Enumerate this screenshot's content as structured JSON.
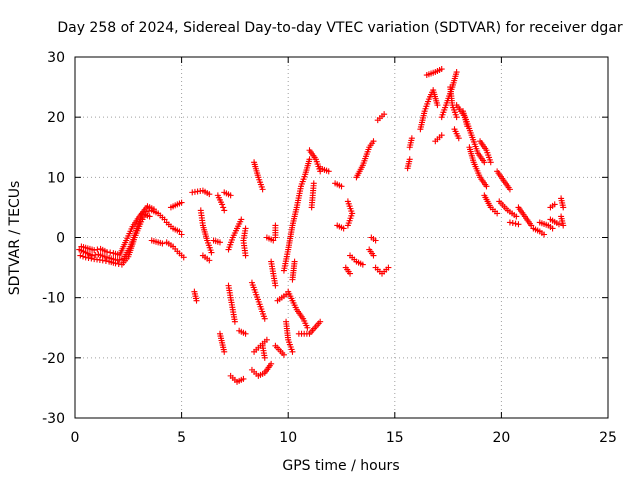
{
  "chart_data": {
    "type": "scatter",
    "title": "Day 258 of 2024, Sidereal Day-to-day VTEC variation (SDTVAR) for receiver dgar",
    "xlabel": "GPS time / hours",
    "ylabel": "SDTVAR / TECUs",
    "xlim": [
      0,
      25
    ],
    "ylim": [
      -30,
      30
    ],
    "xticks": [
      0,
      5,
      10,
      15,
      20,
      25
    ],
    "yticks": [
      -30,
      -20,
      -10,
      0,
      10,
      20,
      30
    ],
    "xtick_labels": [
      "0",
      "5",
      "10",
      "15",
      "20",
      "25"
    ],
    "ytick_labels": [
      "-30",
      "-20",
      "-10",
      "0",
      "10",
      "20",
      "30"
    ],
    "grid": true,
    "marker": "plus",
    "color": "#ff0000",
    "segments": [
      [
        [
          0.2,
          -2
        ],
        [
          0.5,
          -2.5
        ],
        [
          0.8,
          -3
        ],
        [
          1.1,
          -2.8
        ],
        [
          1.4,
          -3.2
        ],
        [
          1.7,
          -3.5
        ],
        [
          2.0,
          -3.8
        ],
        [
          2.3,
          -3.5
        ],
        [
          2.6,
          -1.5
        ],
        [
          2.9,
          1.5
        ],
        [
          3.2,
          4.2
        ],
        [
          3.6,
          4.5
        ],
        [
          3.9,
          4.0
        ],
        [
          4.2,
          3.0
        ]
      ],
      [
        [
          0.3,
          -1.5
        ],
        [
          0.6,
          -1.8
        ],
        [
          0.9,
          -2.1
        ],
        [
          1.2,
          -1.9
        ],
        [
          1.5,
          -2.4
        ],
        [
          1.8,
          -2.6
        ],
        [
          2.1,
          -2.9
        ],
        [
          2.4,
          -0.5
        ],
        [
          2.7,
          1.8
        ],
        [
          3.0,
          3.4
        ],
        [
          3.4,
          5.2
        ],
        [
          3.7,
          4.7
        ]
      ],
      [
        [
          0.25,
          -3.0
        ],
        [
          0.5,
          -3.3
        ],
        [
          0.9,
          -3.6
        ],
        [
          1.3,
          -3.8
        ],
        [
          1.6,
          -4.0
        ],
        [
          1.9,
          -4.3
        ],
        [
          2.2,
          -4.5
        ],
        [
          2.5,
          -3.2
        ],
        [
          2.8,
          0.0
        ],
        [
          3.1,
          2.6
        ],
        [
          3.3,
          3.8
        ],
        [
          3.5,
          3.5
        ]
      ],
      [
        [
          4.3,
          2.5
        ],
        [
          4.6,
          1.5
        ],
        [
          4.9,
          1.0
        ],
        [
          5.0,
          0.5
        ]
      ],
      [
        [
          4.5,
          5
        ],
        [
          4.8,
          5.5
        ],
        [
          5.0,
          5.8
        ]
      ],
      [
        [
          3.6,
          -0.5
        ],
        [
          3.9,
          -0.8
        ],
        [
          4.1,
          -1.0
        ]
      ],
      [
        [
          4.3,
          -0.8
        ],
        [
          4.6,
          -1.5
        ],
        [
          4.8,
          -2.3
        ],
        [
          5.1,
          -3.3
        ]
      ],
      [
        [
          5.5,
          7.5
        ],
        [
          6.0,
          7.8
        ],
        [
          6.3,
          7.2
        ]
      ],
      [
        [
          5.9,
          4.5
        ],
        [
          6.0,
          2.0
        ],
        [
          6.2,
          -0.5
        ],
        [
          6.4,
          -2.5
        ]
      ],
      [
        [
          5.6,
          -9
        ],
        [
          5.7,
          -10.5
        ]
      ],
      [
        [
          6.0,
          -3
        ],
        [
          6.3,
          -3.8
        ]
      ],
      [
        [
          6.5,
          -0.5
        ],
        [
          6.8,
          -0.8
        ]
      ],
      [
        [
          6.7,
          7
        ],
        [
          6.9,
          5.5
        ],
        [
          7.0,
          4.5
        ]
      ],
      [
        [
          7.0,
          7.5
        ],
        [
          7.3,
          7.0
        ]
      ],
      [
        [
          6.8,
          -16
        ],
        [
          6.9,
          -17.5
        ],
        [
          7.0,
          -19
        ]
      ],
      [
        [
          7.2,
          -2
        ],
        [
          7.4,
          0
        ],
        [
          7.6,
          1.5
        ],
        [
          7.8,
          3
        ]
      ],
      [
        [
          7.2,
          -8
        ],
        [
          7.3,
          -10
        ],
        [
          7.4,
          -12
        ],
        [
          7.5,
          -14
        ]
      ],
      [
        [
          7.3,
          -23
        ],
        [
          7.6,
          -24
        ],
        [
          7.9,
          -23.5
        ]
      ],
      [
        [
          7.7,
          -15.5
        ],
        [
          8.0,
          -16
        ]
      ],
      [
        [
          8.0,
          -3
        ],
        [
          7.9,
          -0.5
        ],
        [
          8.0,
          1.5
        ]
      ],
      [
        [
          8.3,
          -22
        ],
        [
          8.6,
          -23
        ],
        [
          8.9,
          -22.5
        ],
        [
          9.2,
          -21
        ]
      ],
      [
        [
          8.4,
          -19
        ],
        [
          8.7,
          -18
        ],
        [
          9.0,
          -17
        ]
      ],
      [
        [
          8.3,
          -7.5
        ],
        [
          8.5,
          -9.5
        ],
        [
          8.7,
          -11.5
        ],
        [
          8.9,
          -13.5
        ]
      ],
      [
        [
          8.4,
          12.5
        ],
        [
          8.6,
          10
        ],
        [
          8.8,
          8
        ]
      ],
      [
        [
          8.8,
          -18
        ],
        [
          8.9,
          -20
        ]
      ],
      [
        [
          9.2,
          -4
        ],
        [
          9.3,
          -6
        ],
        [
          9.4,
          -8
        ]
      ],
      [
        [
          9.0,
          0
        ],
        [
          9.3,
          -0.5
        ]
      ],
      [
        [
          9.4,
          2
        ],
        [
          9.4,
          0
        ]
      ],
      [
        [
          9.5,
          -10.5
        ],
        [
          9.7,
          -10
        ],
        [
          9.9,
          -9.5
        ]
      ],
      [
        [
          9.4,
          -18
        ],
        [
          9.8,
          -19.5
        ]
      ],
      [
        [
          9.8,
          -5.5
        ],
        [
          10.0,
          -2
        ],
        [
          10.2,
          2
        ],
        [
          10.4,
          5
        ],
        [
          10.6,
          8.5
        ],
        [
          10.8,
          10.5
        ],
        [
          11.0,
          13
        ]
      ],
      [
        [
          9.9,
          -14
        ],
        [
          10.0,
          -17
        ],
        [
          10.2,
          -19
        ]
      ],
      [
        [
          10.0,
          -9
        ],
        [
          10.2,
          -10.5
        ],
        [
          10.4,
          -12
        ],
        [
          10.7,
          -13.5
        ],
        [
          10.9,
          -15
        ]
      ],
      [
        [
          10.2,
          -7
        ],
        [
          10.3,
          -4
        ]
      ],
      [
        [
          10.5,
          -16
        ],
        [
          11.0,
          -16
        ],
        [
          11.5,
          -14
        ]
      ],
      [
        [
          11.0,
          14.5
        ],
        [
          11.3,
          13
        ],
        [
          11.5,
          11
        ]
      ],
      [
        [
          11.1,
          5
        ],
        [
          11.2,
          9
        ]
      ],
      [
        [
          11.5,
          11.5
        ],
        [
          11.9,
          11
        ]
      ],
      [
        [
          12.2,
          9
        ],
        [
          12.5,
          8.5
        ]
      ],
      [
        [
          12.3,
          2
        ],
        [
          12.6,
          1.5
        ]
      ],
      [
        [
          12.8,
          6
        ],
        [
          13.0,
          4
        ],
        [
          12.8,
          2
        ]
      ],
      [
        [
          12.9,
          -3
        ],
        [
          13.2,
          -4
        ],
        [
          13.5,
          -4.5
        ]
      ],
      [
        [
          12.7,
          -5
        ],
        [
          12.9,
          -6
        ]
      ],
      [
        [
          13.2,
          10
        ],
        [
          13.5,
          12
        ],
        [
          13.8,
          15
        ],
        [
          14.0,
          16
        ]
      ],
      [
        [
          13.8,
          -2
        ],
        [
          14.0,
          -3
        ]
      ],
      [
        [
          13.9,
          0
        ],
        [
          14.1,
          -0.5
        ]
      ],
      [
        [
          14.1,
          -5
        ],
        [
          14.4,
          -6
        ],
        [
          14.7,
          -5
        ]
      ],
      [
        [
          14.2,
          19.5
        ],
        [
          14.5,
          20.5
        ]
      ],
      [
        [
          15.6,
          11.5
        ],
        [
          15.7,
          13
        ]
      ],
      [
        [
          15.7,
          15
        ],
        [
          15.8,
          16.5
        ]
      ],
      [
        [
          16.2,
          18
        ],
        [
          16.4,
          21
        ],
        [
          16.6,
          23
        ],
        [
          16.8,
          24.5
        ],
        [
          17.0,
          22
        ]
      ],
      [
        [
          16.5,
          27
        ],
        [
          16.9,
          27.5
        ],
        [
          17.2,
          28
        ]
      ],
      [
        [
          16.9,
          16
        ],
        [
          17.2,
          17
        ]
      ],
      [
        [
          17.2,
          20
        ],
        [
          17.4,
          22
        ],
        [
          17.7,
          25
        ],
        [
          17.9,
          27.5
        ]
      ],
      [
        [
          17.6,
          25
        ],
        [
          17.7,
          22
        ],
        [
          17.9,
          20
        ]
      ],
      [
        [
          17.9,
          22
        ],
        [
          18.3,
          20
        ],
        [
          18.6,
          17
        ],
        [
          18.9,
          14
        ],
        [
          19.2,
          12.5
        ]
      ],
      [
        [
          17.8,
          18
        ],
        [
          18.0,
          16.5
        ]
      ],
      [
        [
          18.2,
          21
        ],
        [
          18.4,
          18.5
        ]
      ],
      [
        [
          18.5,
          15
        ],
        [
          18.7,
          12.5
        ],
        [
          19.0,
          10
        ],
        [
          19.3,
          8.5
        ]
      ],
      [
        [
          19.0,
          16
        ],
        [
          19.3,
          14.5
        ],
        [
          19.5,
          12.5
        ]
      ],
      [
        [
          19.2,
          7
        ],
        [
          19.5,
          5
        ],
        [
          19.8,
          4
        ]
      ],
      [
        [
          19.8,
          11
        ],
        [
          20.1,
          9.5
        ],
        [
          20.4,
          8
        ]
      ],
      [
        [
          19.9,
          6
        ],
        [
          20.3,
          4.5
        ],
        [
          20.7,
          3.5
        ]
      ],
      [
        [
          20.4,
          2.5
        ],
        [
          20.8,
          2.2
        ]
      ],
      [
        [
          20.8,
          5
        ],
        [
          21.1,
          3.5
        ],
        [
          21.4,
          2.0
        ]
      ],
      [
        [
          21.5,
          1.5
        ],
        [
          21.8,
          1.0
        ],
        [
          22.0,
          0.5
        ]
      ],
      [
        [
          21.8,
          2.5
        ],
        [
          22.2,
          2.0
        ],
        [
          22.4,
          1.5
        ]
      ],
      [
        [
          22.3,
          3.0
        ],
        [
          22.7,
          2.2
        ]
      ],
      [
        [
          22.3,
          5.0
        ],
        [
          22.5,
          5.5
        ]
      ],
      [
        [
          22.8,
          3.5
        ],
        [
          22.9,
          2.0
        ]
      ],
      [
        [
          22.8,
          6.5
        ],
        [
          22.9,
          5.0
        ]
      ]
    ]
  }
}
